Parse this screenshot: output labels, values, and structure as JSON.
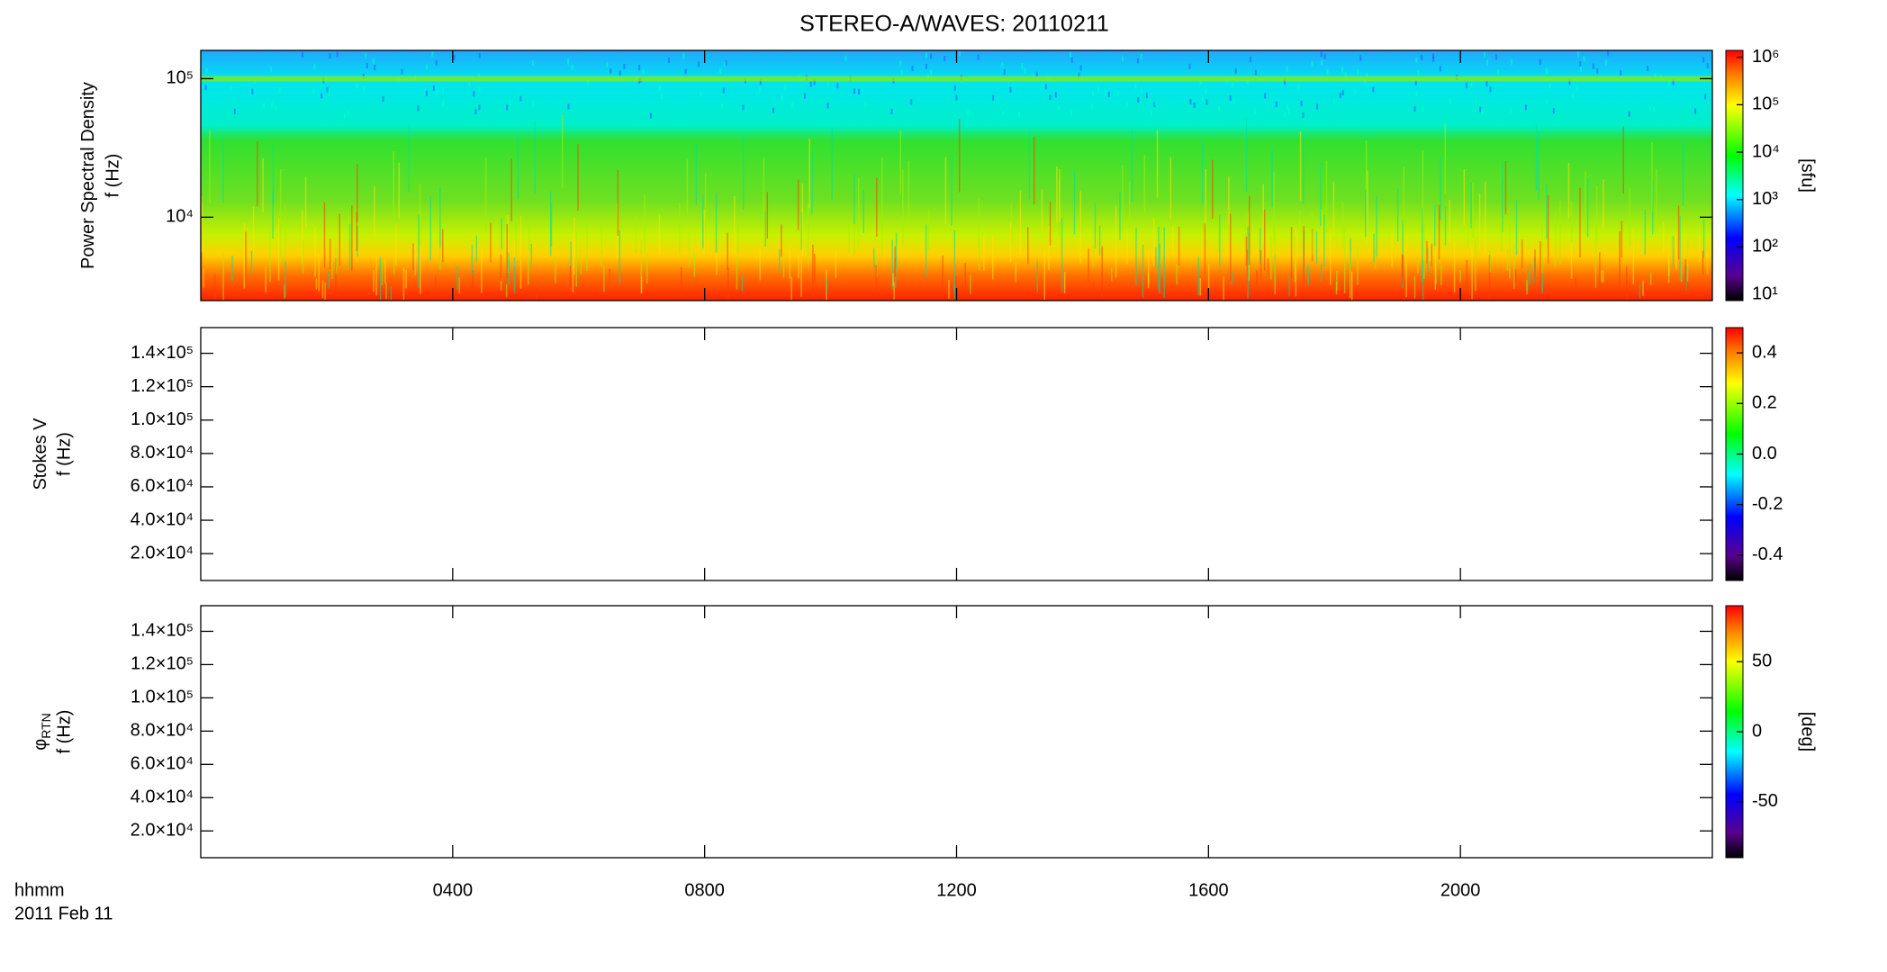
{
  "chart_data": [
    {
      "type": "spectrogram",
      "title": "STEREO-A/WAVES: 20110211",
      "ylabel": "Power Spectral Density",
      "ylabel2": "f (Hz)",
      "ylim": [
        2500,
        160000
      ],
      "ylog": true,
      "yticks": [
        {
          "value": 10000,
          "label": "10⁴"
        },
        {
          "value": 100000,
          "label": "10⁵"
        }
      ],
      "clim": [
        7.4,
        1400000
      ],
      "clog": true,
      "cticks": [
        {
          "value": 10,
          "label": "10¹"
        },
        {
          "value": 100,
          "label": "10²"
        },
        {
          "value": 1000,
          "label": "10³"
        },
        {
          "value": 10000,
          "label": "10⁴"
        },
        {
          "value": 100000,
          "label": "10⁵"
        },
        {
          "value": 1000000,
          "label": "10⁶"
        }
      ],
      "clabel": "[sfu]"
    },
    {
      "type": "spectrogram",
      "ylabel": "Stokes V",
      "ylabel2": "f (Hz)",
      "ylim": [
        3900,
        155400
      ],
      "ylog": false,
      "yticks": [
        {
          "value": 20000,
          "label": "2.0×10⁴"
        },
        {
          "value": 40000,
          "label": "4.0×10⁴"
        },
        {
          "value": 60000,
          "label": "6.0×10⁴"
        },
        {
          "value": 80000,
          "label": "8.0×10⁴"
        },
        {
          "value": 100000,
          "label": "1.0×10⁵"
        },
        {
          "value": 120000,
          "label": "1.2×10⁵"
        },
        {
          "value": 140000,
          "label": "1.4×10⁵"
        }
      ],
      "clim": [
        -0.5,
        0.5
      ],
      "clog": false,
      "cticks": [
        {
          "value": -0.4,
          "label": "-0.4"
        },
        {
          "value": -0.2,
          "label": "-0.2"
        },
        {
          "value": 0,
          "label": "0.0"
        },
        {
          "value": 0.2,
          "label": "0.2"
        },
        {
          "value": 0.4,
          "label": "0.4"
        }
      ]
    },
    {
      "type": "spectrogram",
      "ylabel": "φ",
      "ylabel_sub": "RTN",
      "ylabel2": "f (Hz)",
      "ylim": [
        3900,
        155400
      ],
      "ylog": false,
      "yticks": [
        {
          "value": 20000,
          "label": "2.0×10⁴"
        },
        {
          "value": 40000,
          "label": "4.0×10⁴"
        },
        {
          "value": 60000,
          "label": "6.0×10⁴"
        },
        {
          "value": 80000,
          "label": "8.0×10⁴"
        },
        {
          "value": 100000,
          "label": "1.0×10⁵"
        },
        {
          "value": 120000,
          "label": "1.2×10⁵"
        },
        {
          "value": 140000,
          "label": "1.4×10⁵"
        }
      ],
      "clim": [
        -90,
        90
      ],
      "clog": false,
      "cticks": [
        -50,
        0,
        50
      ],
      "clabel": "[deg]",
      "xlim": [
        0,
        24
      ],
      "xticks": [
        {
          "value": 4,
          "label": "0400"
        },
        {
          "value": 8,
          "label": "0800"
        },
        {
          "value": 12,
          "label": "1200"
        },
        {
          "value": 16,
          "label": "1600"
        },
        {
          "value": 20,
          "label": "2000"
        }
      ],
      "xlabel": "hhmm",
      "xlabel2": "2011 Feb 11"
    }
  ]
}
